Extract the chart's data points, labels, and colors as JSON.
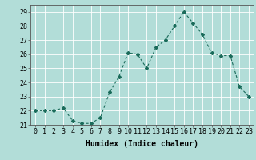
{
  "x": [
    0,
    1,
    2,
    3,
    4,
    5,
    6,
    7,
    8,
    9,
    10,
    11,
    12,
    13,
    14,
    15,
    16,
    17,
    18,
    19,
    20,
    21,
    22,
    23
  ],
  "y": [
    22,
    22,
    22,
    22.2,
    21.3,
    21.1,
    21.1,
    21.5,
    23.3,
    24.4,
    26.1,
    26,
    25,
    26.5,
    27,
    28,
    29,
    28.2,
    27.4,
    26.1,
    25.9,
    25.9,
    23.7,
    23
  ],
  "line_color": "#1a6b5a",
  "marker": "D",
  "marker_size": 2,
  "bg_color": "#b2ddd8",
  "grid_color": "#ffffff",
  "xlabel": "Humidex (Indice chaleur)",
  "ylim": [
    21,
    29.5
  ],
  "yticks": [
    21,
    22,
    23,
    24,
    25,
    26,
    27,
    28,
    29
  ],
  "xticks": [
    0,
    1,
    2,
    3,
    4,
    5,
    6,
    7,
    8,
    9,
    10,
    11,
    12,
    13,
    14,
    15,
    16,
    17,
    18,
    19,
    20,
    21,
    22,
    23
  ],
  "xlabel_fontsize": 7,
  "tick_fontsize": 6
}
